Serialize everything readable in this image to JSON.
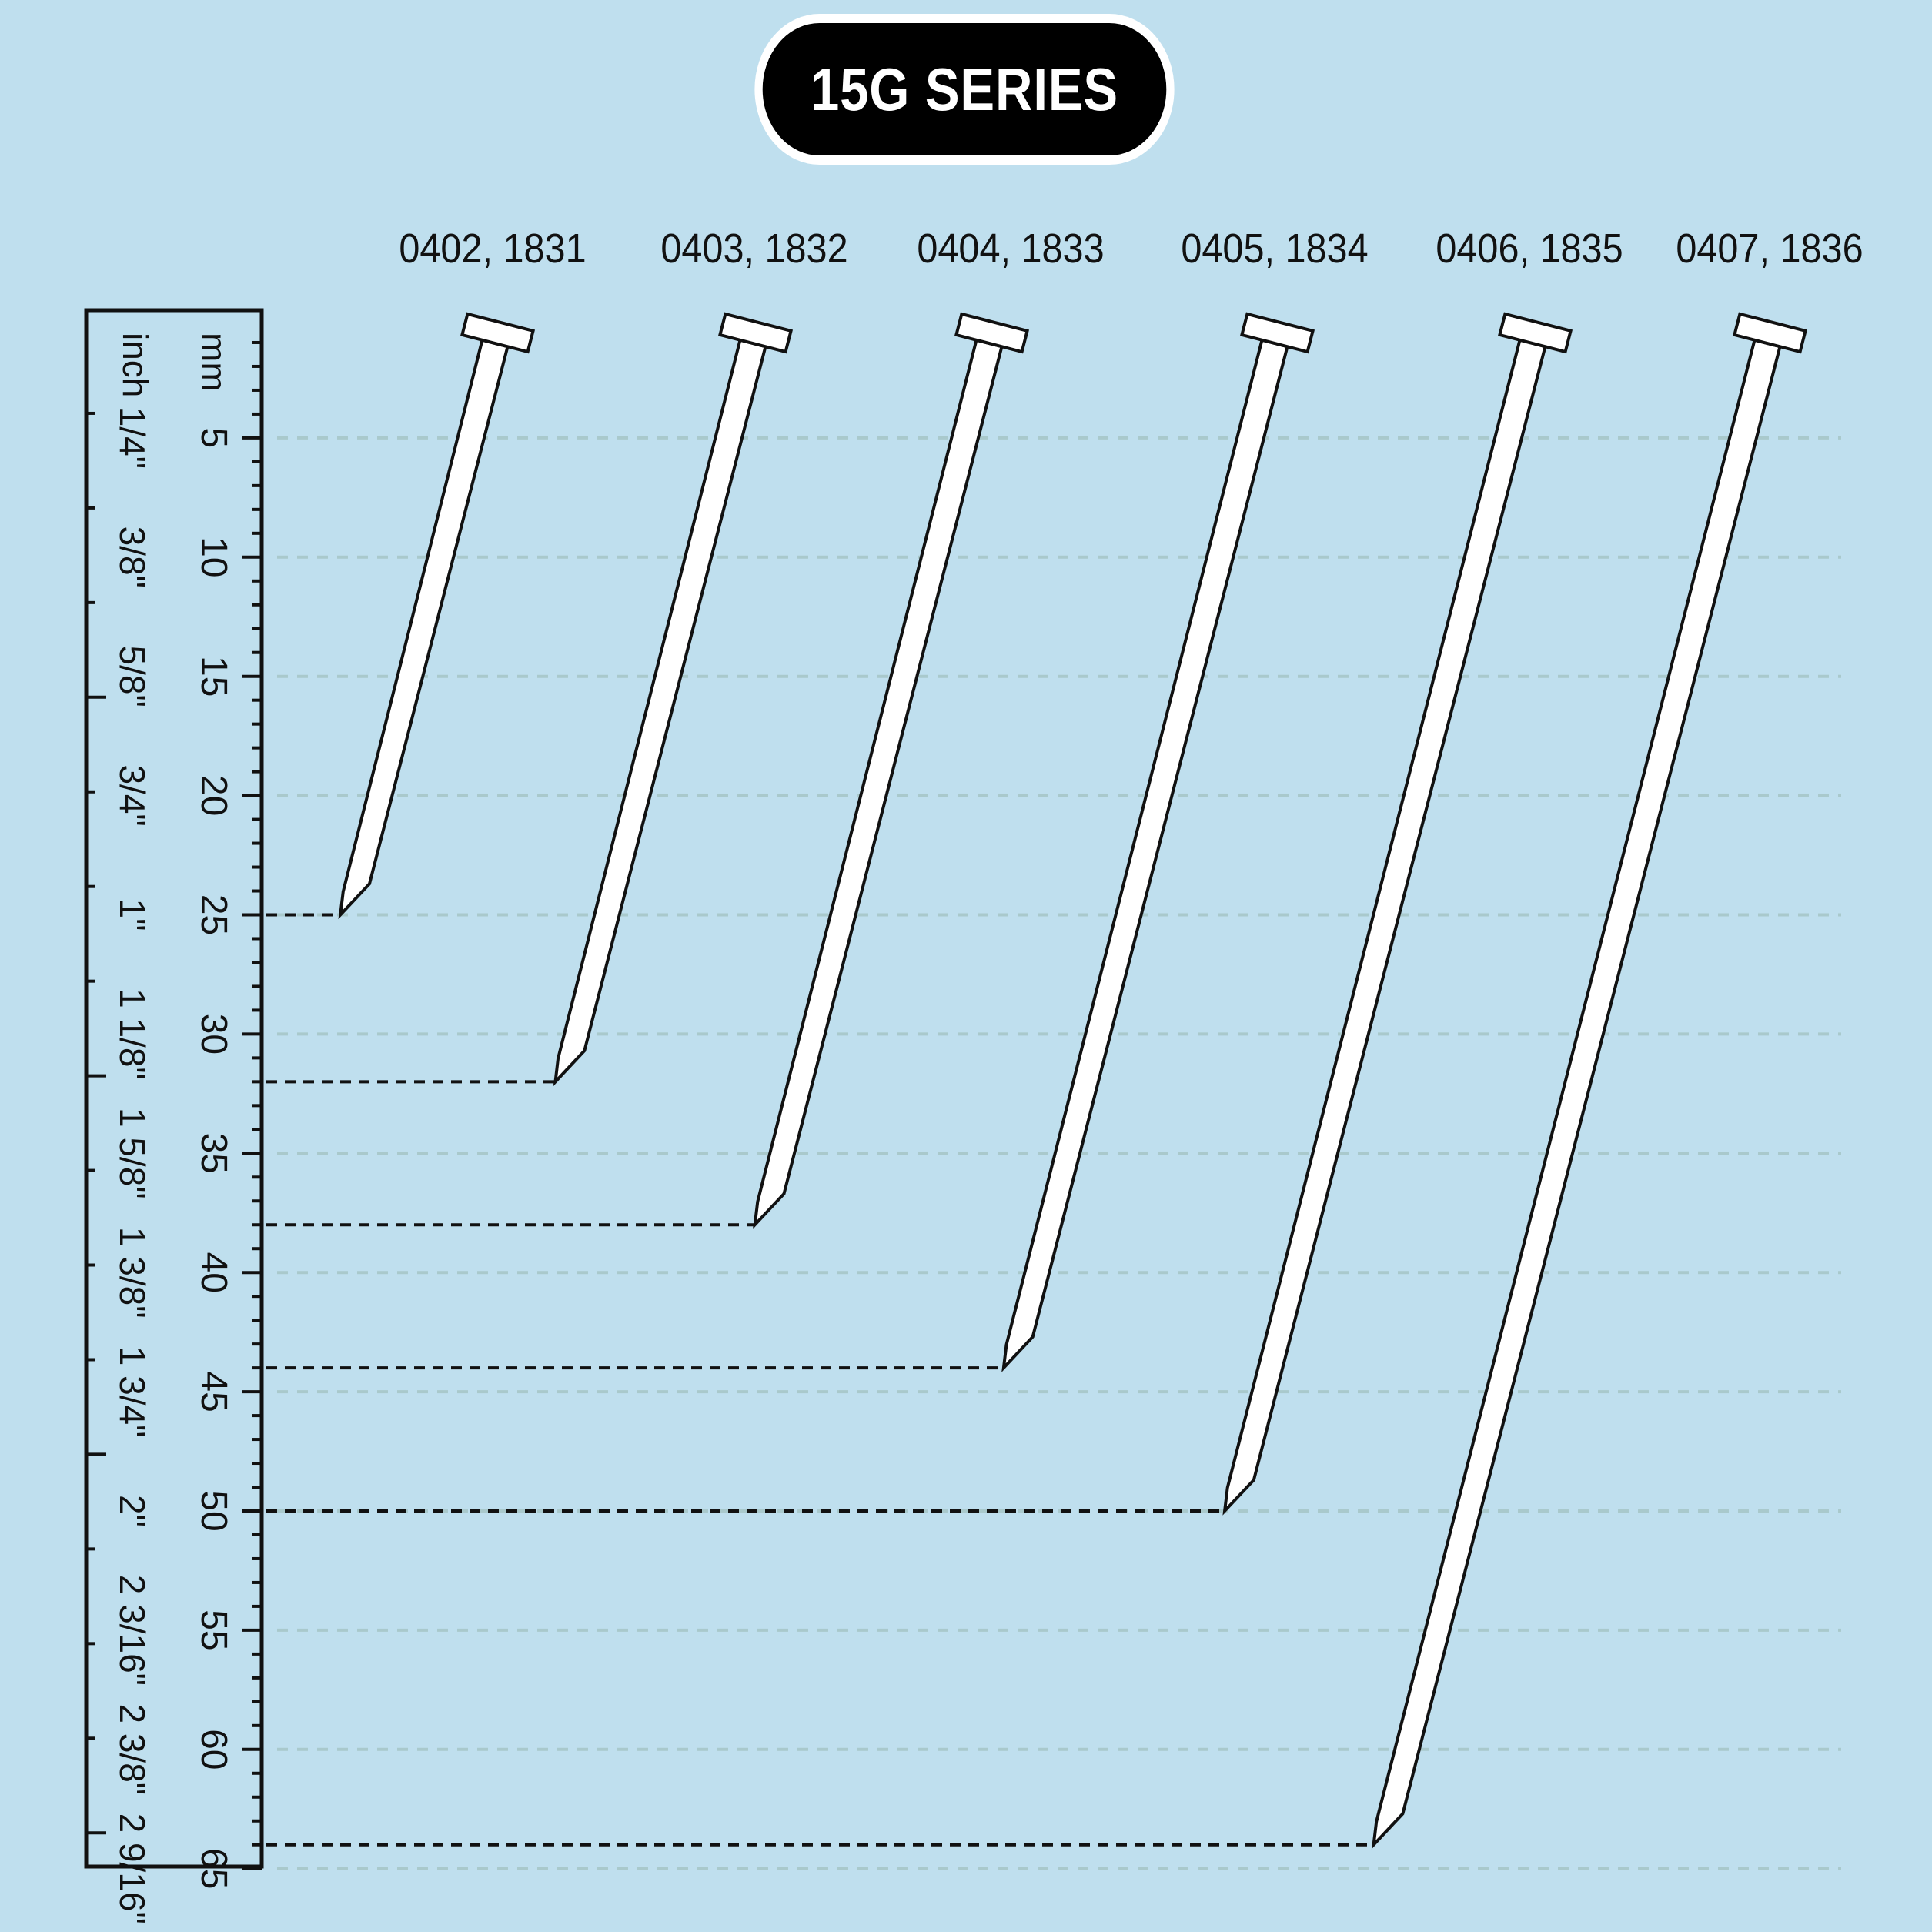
{
  "title": "15G SERIES",
  "ruler": {
    "mm_unit": "mm",
    "inch_unit": "inch",
    "mm_ticks": [
      "5",
      "10",
      "15",
      "20",
      "25",
      "30",
      "35",
      "40",
      "45",
      "50",
      "55",
      "60",
      "65"
    ],
    "inch_ticks": [
      "1/4\"",
      "3/8\"",
      "5/8\"",
      "3/4\"",
      "1\"",
      "1 1/8\"",
      "1 5/8\"",
      "1 3/8\"",
      "1 3/4\"",
      "2\"",
      "2 3/16\"",
      "2 3/8\"",
      "2 9/16\""
    ]
  },
  "nails": [
    {
      "label": "0402, 1831",
      "length_mm": 25
    },
    {
      "label": "0403, 1832",
      "length_mm": 32
    },
    {
      "label": "0404, 1833",
      "length_mm": 38
    },
    {
      "label": "0405, 1834",
      "length_mm": 44
    },
    {
      "label": "0406, 1835",
      "length_mm": 50
    },
    {
      "label": "0407, 1836",
      "length_mm": 64
    }
  ],
  "colors": {
    "background": "#bfdfee",
    "grid": "#a9c9cc",
    "nail_fill": "#ffffff",
    "stroke": "#111111"
  }
}
